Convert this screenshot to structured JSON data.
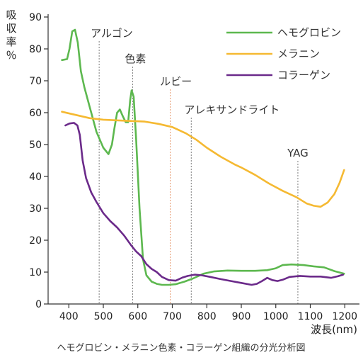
{
  "chart_data": {
    "type": "line",
    "title": "",
    "caption": "ヘモグロビン・メラニン色素・コラーゲン組織の分光分析図",
    "ylabel": "吸収率％",
    "xlabel": "波長(nm)",
    "xlim": [
      340,
      1210
    ],
    "ylim": [
      0,
      91
    ],
    "xticks": [
      400,
      500,
      600,
      700,
      800,
      900,
      1000,
      1100,
      1200
    ],
    "yticks": [
      0,
      10,
      20,
      30,
      40,
      50,
      60,
      70,
      80,
      90
    ],
    "grid": false,
    "legend_position": "top-right",
    "series": [
      {
        "name": "ヘモグロビン",
        "color": "#5db84f",
        "points": [
          [
            380,
            76.5
          ],
          [
            395,
            76.8
          ],
          [
            402,
            80
          ],
          [
            410,
            85.5
          ],
          [
            418,
            86
          ],
          [
            426,
            82
          ],
          [
            435,
            73
          ],
          [
            445,
            68
          ],
          [
            460,
            62
          ],
          [
            480,
            54
          ],
          [
            500,
            49
          ],
          [
            515,
            47
          ],
          [
            525,
            50
          ],
          [
            532,
            55
          ],
          [
            540,
            60
          ],
          [
            548,
            61
          ],
          [
            556,
            59
          ],
          [
            565,
            57
          ],
          [
            572,
            57
          ],
          [
            578,
            64
          ],
          [
            582,
            67
          ],
          [
            588,
            65
          ],
          [
            595,
            52
          ],
          [
            605,
            30
          ],
          [
            615,
            14
          ],
          [
            625,
            9
          ],
          [
            640,
            7
          ],
          [
            655,
            6.3
          ],
          [
            670,
            6
          ],
          [
            690,
            6
          ],
          [
            710,
            6.2
          ],
          [
            735,
            7
          ],
          [
            760,
            8
          ],
          [
            790,
            9.5
          ],
          [
            820,
            10.2
          ],
          [
            860,
            10.5
          ],
          [
            900,
            10.4
          ],
          [
            940,
            10.4
          ],
          [
            975,
            10.6
          ],
          [
            1000,
            11.2
          ],
          [
            1020,
            12.2
          ],
          [
            1045,
            12.4
          ],
          [
            1080,
            12.2
          ],
          [
            1110,
            11.8
          ],
          [
            1140,
            11.5
          ],
          [
            1170,
            10.3
          ],
          [
            1198,
            9.5
          ]
        ]
      },
      {
        "name": "メラニン",
        "color": "#f5b932",
        "points": [
          [
            380,
            60.3
          ],
          [
            420,
            59.3
          ],
          [
            460,
            58.3
          ],
          [
            500,
            57.8
          ],
          [
            560,
            57.5
          ],
          [
            620,
            57.2
          ],
          [
            660,
            56.5
          ],
          [
            700,
            55.5
          ],
          [
            740,
            53.5
          ],
          [
            770,
            51.5
          ],
          [
            800,
            49
          ],
          [
            840,
            46.2
          ],
          [
            880,
            43.8
          ],
          [
            900,
            42.8
          ],
          [
            940,
            40.5
          ],
          [
            980,
            37.8
          ],
          [
            1020,
            35.5
          ],
          [
            1060,
            33.5
          ],
          [
            1090,
            31.5
          ],
          [
            1110,
            30.8
          ],
          [
            1130,
            30.5
          ],
          [
            1150,
            31.8
          ],
          [
            1170,
            34.5
          ],
          [
            1185,
            38
          ],
          [
            1198,
            42
          ]
        ]
      },
      {
        "name": "コラーゲン",
        "color": "#6b2a8a",
        "points": [
          [
            390,
            56
          ],
          [
            402,
            56.6
          ],
          [
            415,
            56.8
          ],
          [
            425,
            56
          ],
          [
            432,
            53
          ],
          [
            440,
            45
          ],
          [
            450,
            39.5
          ],
          [
            465,
            35
          ],
          [
            480,
            32
          ],
          [
            500,
            28.5
          ],
          [
            520,
            26
          ],
          [
            540,
            24
          ],
          [
            560,
            21.5
          ],
          [
            580,
            18.5
          ],
          [
            595,
            16.5
          ],
          [
            610,
            15
          ],
          [
            625,
            12.5
          ],
          [
            640,
            11
          ],
          [
            655,
            10
          ],
          [
            670,
            8.5
          ],
          [
            690,
            7.5
          ],
          [
            710,
            7.3
          ],
          [
            730,
            8.3
          ],
          [
            745,
            8.8
          ],
          [
            765,
            9.2
          ],
          [
            785,
            9
          ],
          [
            810,
            8.5
          ],
          [
            840,
            7.8
          ],
          [
            870,
            7.2
          ],
          [
            900,
            6.6
          ],
          [
            930,
            6
          ],
          [
            945,
            6.3
          ],
          [
            960,
            7.2
          ],
          [
            975,
            8.2
          ],
          [
            990,
            7.5
          ],
          [
            1005,
            7.2
          ],
          [
            1020,
            7.6
          ],
          [
            1040,
            8.5
          ],
          [
            1070,
            8.8
          ],
          [
            1100,
            8.6
          ],
          [
            1130,
            8.6
          ],
          [
            1160,
            8.2
          ],
          [
            1180,
            8.7
          ],
          [
            1195,
            9.2
          ]
        ]
      }
    ],
    "annotations": [
      {
        "label": "アルゴン",
        "x": 488
      },
      {
        "label": "色素",
        "x": 585
      },
      {
        "label": "ルビー",
        "x": 694
      },
      {
        "label": "アレキサンドライト",
        "x": 755
      },
      {
        "label": "YAG",
        "x": 1064
      }
    ]
  }
}
